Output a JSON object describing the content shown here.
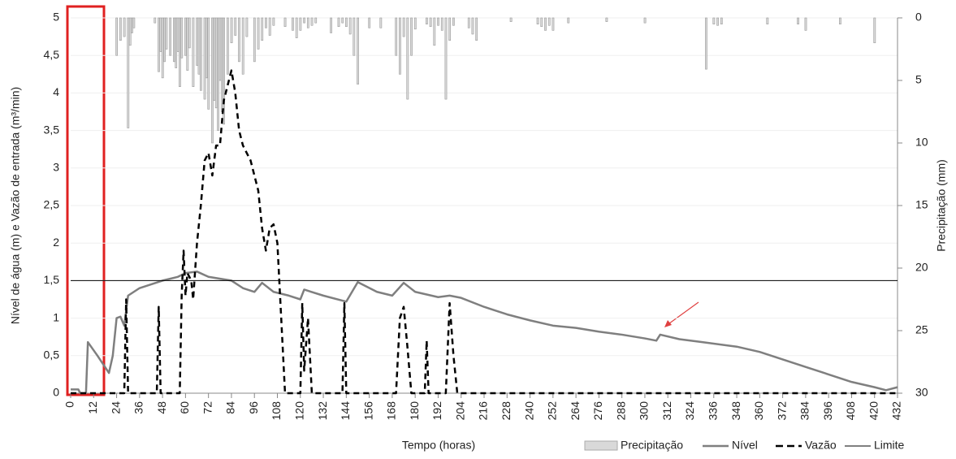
{
  "chart_data": {
    "type": "combo",
    "x_label": "Tempo (horas)",
    "y_label": "Nível de água (m) e Vazão de entrada (m³/min)",
    "y2_label": "Precipitação (mm)",
    "xlim": [
      0,
      432
    ],
    "xticks": [
      0,
      12,
      24,
      36,
      48,
      60,
      72,
      84,
      96,
      108,
      120,
      132,
      144,
      156,
      168,
      180,
      192,
      204,
      216,
      228,
      240,
      252,
      264,
      276,
      288,
      300,
      312,
      324,
      336,
      348,
      360,
      372,
      384,
      396,
      408,
      420,
      432
    ],
    "ylim": [
      0,
      5
    ],
    "yticks": [
      0,
      {
        "value": 0.5,
        "label": "0,5"
      },
      1,
      {
        "value": 1.5,
        "label": "1,5"
      },
      2,
      {
        "value": 2.5,
        "label": "2,5"
      },
      3,
      {
        "value": 3.5,
        "label": "3,5"
      },
      4,
      {
        "value": 4.5,
        "label": "4,5"
      },
      5
    ],
    "y2lim": [
      30,
      0
    ],
    "y2ticks": [
      0,
      5,
      10,
      15,
      20,
      25,
      30
    ],
    "grid": true,
    "legend": "bottom-right",
    "series": [
      {
        "name": "Precipitação",
        "type": "bar",
        "axis": "y2",
        "color": "#d9d9d9",
        "x": [
          24,
          26,
          28,
          30,
          31,
          32,
          33,
          44,
          46,
          47,
          48,
          49,
          50,
          52,
          54,
          55,
          56,
          57,
          58,
          60,
          61,
          62,
          64,
          66,
          67,
          68,
          70,
          71,
          72,
          74,
          75,
          76,
          77,
          78,
          79,
          80,
          82,
          84,
          86,
          88,
          90,
          92,
          96,
          98,
          100,
          102,
          104,
          106,
          112,
          116,
          118,
          120,
          122,
          124,
          126,
          128,
          136,
          140,
          142,
          144,
          146,
          148,
          150,
          156,
          162,
          170,
          172,
          174,
          176,
          178,
          180,
          186,
          188,
          190,
          192,
          194,
          196,
          198,
          200,
          208,
          210,
          212,
          230,
          244,
          246,
          248,
          250,
          252,
          260,
          280,
          300,
          332,
          336,
          338,
          340,
          364,
          380,
          384,
          402,
          420
        ],
        "values": [
          3.0,
          1.8,
          1.5,
          8.8,
          2.2,
          1.2,
          0.8,
          0.4,
          4.3,
          2.7,
          4.8,
          3.5,
          2.5,
          3.0,
          3.5,
          4.0,
          2.7,
          5.5,
          3.2,
          3.0,
          4.2,
          2.4,
          5.5,
          3.8,
          4.5,
          5.8,
          6.5,
          4.8,
          7.3,
          10.0,
          6.6,
          7.2,
          9.0,
          5.0,
          7.5,
          8.5,
          4.5,
          2.0,
          1.4,
          3.5,
          4.5,
          1.5,
          3.5,
          2.5,
          1.8,
          0.8,
          1.4,
          0.6,
          0.7,
          1.0,
          1.6,
          1.0,
          0.4,
          0.8,
          0.6,
          0.4,
          1.2,
          0.7,
          0.4,
          0.7,
          1.3,
          3.0,
          5.3,
          0.8,
          0.8,
          3.0,
          4.5,
          1.5,
          6.5,
          3.0,
          0.9,
          0.5,
          0.7,
          2.2,
          0.6,
          1.0,
          6.5,
          1.8,
          0.6,
          0.8,
          1.3,
          1.8,
          0.3,
          0.5,
          0.7,
          1.0,
          0.6,
          1.0,
          0.4,
          0.3,
          0.4,
          4.1,
          0.5,
          0.6,
          0.5,
          0.5,
          0.5,
          1.0,
          0.5,
          2.0
        ]
      },
      {
        "name": "Nível",
        "type": "line",
        "line_style": "solid",
        "color": "#7f7f7f",
        "x": [
          0,
          4,
          5,
          8,
          9,
          14,
          20,
          22,
          24,
          26,
          28,
          30,
          36,
          48,
          56,
          60,
          66,
          72,
          84,
          90,
          96,
          100,
          106,
          114,
          120,
          122,
          132,
          144,
          150,
          160,
          168,
          174,
          180,
          192,
          198,
          204,
          216,
          228,
          240,
          252,
          264,
          276,
          288,
          300,
          306,
          308,
          318,
          330,
          348,
          360,
          372,
          384,
          396,
          408,
          420,
          426,
          432
        ],
        "values": [
          0.05,
          0.05,
          0,
          0,
          0.68,
          0.5,
          0.27,
          0.5,
          1.0,
          1.02,
          0.9,
          1.3,
          1.4,
          1.5,
          1.55,
          1.6,
          1.62,
          1.55,
          1.5,
          1.4,
          1.35,
          1.47,
          1.35,
          1.3,
          1.25,
          1.38,
          1.3,
          1.22,
          1.48,
          1.35,
          1.3,
          1.47,
          1.35,
          1.28,
          1.3,
          1.27,
          1.15,
          1.05,
          0.97,
          0.9,
          0.87,
          0.82,
          0.78,
          0.73,
          0.7,
          0.78,
          0.72,
          0.68,
          0.62,
          0.55,
          0.45,
          0.35,
          0.25,
          0.15,
          0.08,
          0.04,
          0.08
        ]
      },
      {
        "name": "Vazão",
        "type": "line",
        "line_style": "dashed",
        "color": "#000000",
        "x": [
          0,
          28,
          29,
          30,
          45,
          46,
          47,
          57,
          58,
          59,
          60,
          61,
          63,
          64,
          66,
          68,
          70,
          72,
          74,
          76,
          78,
          80,
          82,
          84,
          86,
          88,
          90,
          94,
          98,
          100,
          102,
          104,
          106,
          108,
          110,
          112,
          120,
          121,
          122,
          124,
          126,
          142,
          143,
          144,
          170,
          172,
          174,
          176,
          178,
          185,
          186,
          187,
          196,
          198,
          200,
          202,
          432
        ],
        "values": [
          0,
          0,
          1.25,
          0,
          0,
          1.15,
          0,
          0,
          1.3,
          1.9,
          1.3,
          1.6,
          1.5,
          1.25,
          2.0,
          2.5,
          3.1,
          3.2,
          2.9,
          3.3,
          3.3,
          3.9,
          4.1,
          4.3,
          4.0,
          3.5,
          3.3,
          3.1,
          2.7,
          2.2,
          1.9,
          2.2,
          2.25,
          2.0,
          1.0,
          0,
          0,
          1.2,
          0.3,
          1.0,
          0,
          0,
          1.2,
          0,
          0,
          1.0,
          1.15,
          0.6,
          0,
          0,
          0.7,
          0,
          0,
          1.2,
          0.5,
          0,
          0
        ]
      },
      {
        "name": "Limite",
        "type": "line",
        "line_style": "thin",
        "color": "#000000",
        "x": [
          0,
          432
        ],
        "values": [
          1.5,
          1.5
        ]
      }
    ]
  }
}
